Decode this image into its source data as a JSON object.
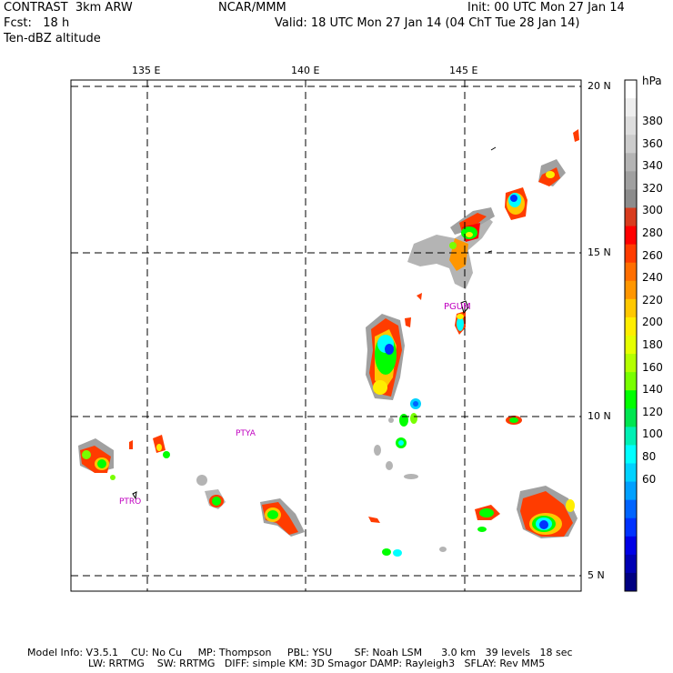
{
  "header": {
    "left_line1": "CONTRAST  3km ARW",
    "left_line2": "Fcst:   18 h",
    "left_line3": "Ten-dBZ altitude",
    "center_line1": "NCAR/MMM",
    "right_line1": "Init: 00 UTC Mon 27 Jan 14",
    "right_line2": "Valid: 18 UTC Mon 27 Jan 14 (04 ChT Tue 28 Jan 14)"
  },
  "map": {
    "lon_labels": [
      "135 E",
      "140 E",
      "145 E"
    ],
    "lat_labels": [
      "20 N",
      "15 N",
      "10 N",
      "5 N"
    ],
    "stations": [
      "PGUM",
      "PTYA",
      "PTRO"
    ]
  },
  "colorbar": {
    "unit": "hPa",
    "labels": [
      "380",
      "360",
      "340",
      "320",
      "300",
      "280",
      "260",
      "240",
      "220",
      "200",
      "180",
      "160",
      "140",
      "120",
      "100",
      "80",
      "60"
    ],
    "colors": [
      "#ffffff",
      "#eeeeee",
      "#dddddd",
      "#cccccc",
      "#b4b4b4",
      "#a0a0a0",
      "#8c8c8c",
      "#d83c1e",
      "#ff0000",
      "#ff3c00",
      "#ff6e00",
      "#ff9600",
      "#ffc800",
      "#ffee00",
      "#e6ff00",
      "#b4ff00",
      "#78ff00",
      "#00ff00",
      "#00e650",
      "#00f0b4",
      "#00ffff",
      "#00d2ff",
      "#00a0ff",
      "#0064ff",
      "#0032ff",
      "#0000e6",
      "#0000b4",
      "#000082"
    ]
  },
  "footer": {
    "line1": "Model Info: V3.5.1    CU: No Cu     MP: Thompson     PBL: YSU       SF: Noah LSM      3.0 km   39 levels   18 sec",
    "line2": "LW: RRTMG    SW: RRTMG   DIFF: simple KM: 3D Smagor DAMP: Rayleigh3   SFLAY: Rev MM5"
  }
}
